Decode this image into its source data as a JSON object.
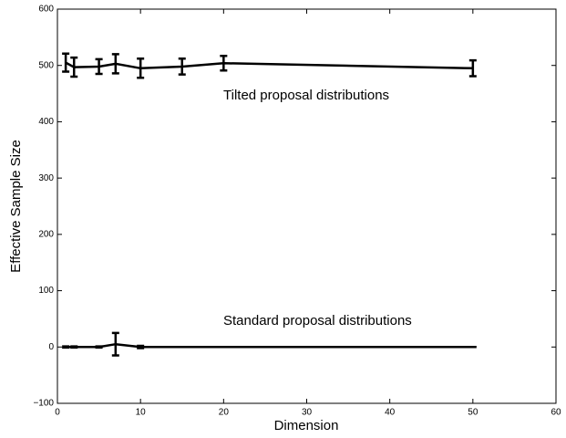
{
  "chart_data": {
    "type": "line",
    "xlabel": "Dimension",
    "ylabel": "Effective Sample Size",
    "annotations": [
      "Tilted proposal distributions",
      "Standard proposal distributions"
    ],
    "x": [
      1,
      2,
      5,
      7,
      10,
      15,
      20,
      50
    ],
    "series": [
      {
        "color": "#000000",
        "values": [
          505,
          497,
          498,
          503,
          495,
          498,
          504,
          495
        ],
        "errors": [
          16,
          17,
          13,
          17,
          17,
          14,
          13,
          14
        ]
      },
      {
        "color": "#000000",
        "values": [
          0,
          0,
          0,
          5,
          0,
          0,
          0,
          0
        ],
        "errors": [
          1,
          1,
          1,
          20,
          2,
          0,
          0,
          0
        ]
      }
    ],
    "xlim": [
      0,
      60
    ],
    "xticks": [
      0,
      10,
      20,
      30,
      40,
      50,
      60
    ],
    "ylim": [
      -100,
      600
    ],
    "yticks": [
      {
        "value": -100,
        "label": "−100"
      },
      0,
      100,
      200,
      300,
      400,
      500,
      600
    ],
    "grid": false
  }
}
